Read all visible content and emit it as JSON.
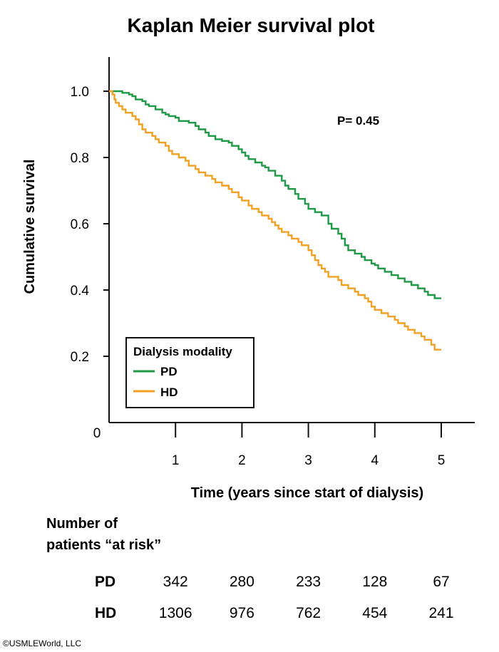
{
  "chart_data": {
    "type": "line",
    "step": true,
    "title": "Kaplan Meier survival plot",
    "xlabel": "Time (years since start of dialysis)",
    "ylabel": "Cumulative survival",
    "x_ticks": [
      "1",
      "2",
      "3",
      "4",
      "5"
    ],
    "y_ticks": [
      "0.2",
      "0.4",
      "0.6",
      "0.8",
      "1.0"
    ],
    "origin_label": "0",
    "xlim": [
      0,
      5.5
    ],
    "ylim": [
      0,
      1.1
    ],
    "grid": false,
    "annotation": "P= 0.45",
    "legend": {
      "title": "Dialysis modality",
      "position": "bottom-left",
      "entries": [
        {
          "label": "PD",
          "color": "#1e9a46"
        },
        {
          "label": "HD",
          "color": "#f4a024"
        }
      ]
    },
    "series": [
      {
        "name": "PD",
        "color": "#1e9a46",
        "points": [
          [
            0,
            1.0
          ],
          [
            0.15,
            1.0
          ],
          [
            0.2,
            0.995
          ],
          [
            0.3,
            0.99
          ],
          [
            0.35,
            0.985
          ],
          [
            0.4,
            0.975
          ],
          [
            0.5,
            0.97
          ],
          [
            0.55,
            0.96
          ],
          [
            0.6,
            0.955
          ],
          [
            0.7,
            0.945
          ],
          [
            0.8,
            0.935
          ],
          [
            0.85,
            0.93
          ],
          [
            0.9,
            0.925
          ],
          [
            1.0,
            0.92
          ],
          [
            1.05,
            0.91
          ],
          [
            1.2,
            0.905
          ],
          [
            1.3,
            0.895
          ],
          [
            1.35,
            0.885
          ],
          [
            1.45,
            0.875
          ],
          [
            1.5,
            0.865
          ],
          [
            1.6,
            0.855
          ],
          [
            1.7,
            0.85
          ],
          [
            1.8,
            0.845
          ],
          [
            1.85,
            0.835
          ],
          [
            1.95,
            0.825
          ],
          [
            2.0,
            0.815
          ],
          [
            2.05,
            0.805
          ],
          [
            2.1,
            0.795
          ],
          [
            2.2,
            0.785
          ],
          [
            2.3,
            0.775
          ],
          [
            2.35,
            0.77
          ],
          [
            2.4,
            0.76
          ],
          [
            2.5,
            0.745
          ],
          [
            2.6,
            0.73
          ],
          [
            2.65,
            0.715
          ],
          [
            2.7,
            0.705
          ],
          [
            2.8,
            0.69
          ],
          [
            2.85,
            0.675
          ],
          [
            2.95,
            0.66
          ],
          [
            3.0,
            0.645
          ],
          [
            3.1,
            0.635
          ],
          [
            3.2,
            0.625
          ],
          [
            3.3,
            0.6
          ],
          [
            3.35,
            0.585
          ],
          [
            3.45,
            0.57
          ],
          [
            3.5,
            0.555
          ],
          [
            3.55,
            0.535
          ],
          [
            3.6,
            0.52
          ],
          [
            3.7,
            0.51
          ],
          [
            3.8,
            0.5
          ],
          [
            3.85,
            0.49
          ],
          [
            3.95,
            0.48
          ],
          [
            4.0,
            0.475
          ],
          [
            4.05,
            0.465
          ],
          [
            4.15,
            0.455
          ],
          [
            4.25,
            0.445
          ],
          [
            4.35,
            0.435
          ],
          [
            4.45,
            0.425
          ],
          [
            4.55,
            0.415
          ],
          [
            4.65,
            0.405
          ],
          [
            4.75,
            0.395
          ],
          [
            4.8,
            0.385
          ],
          [
            4.9,
            0.375
          ],
          [
            5.0,
            0.375
          ]
        ]
      },
      {
        "name": "HD",
        "color": "#f4a024",
        "points": [
          [
            0,
            1.0
          ],
          [
            0.05,
            0.99
          ],
          [
            0.08,
            0.975
          ],
          [
            0.1,
            0.965
          ],
          [
            0.15,
            0.955
          ],
          [
            0.2,
            0.945
          ],
          [
            0.25,
            0.935
          ],
          [
            0.35,
            0.925
          ],
          [
            0.4,
            0.915
          ],
          [
            0.45,
            0.9
          ],
          [
            0.5,
            0.885
          ],
          [
            0.55,
            0.875
          ],
          [
            0.65,
            0.865
          ],
          [
            0.7,
            0.855
          ],
          [
            0.75,
            0.845
          ],
          [
            0.85,
            0.835
          ],
          [
            0.9,
            0.82
          ],
          [
            0.95,
            0.81
          ],
          [
            1.05,
            0.8
          ],
          [
            1.15,
            0.79
          ],
          [
            1.2,
            0.775
          ],
          [
            1.3,
            0.765
          ],
          [
            1.35,
            0.755
          ],
          [
            1.45,
            0.745
          ],
          [
            1.55,
            0.735
          ],
          [
            1.6,
            0.725
          ],
          [
            1.7,
            0.715
          ],
          [
            1.8,
            0.705
          ],
          [
            1.85,
            0.695
          ],
          [
            1.95,
            0.68
          ],
          [
            2.0,
            0.67
          ],
          [
            2.1,
            0.655
          ],
          [
            2.15,
            0.645
          ],
          [
            2.25,
            0.635
          ],
          [
            2.3,
            0.625
          ],
          [
            2.4,
            0.615
          ],
          [
            2.45,
            0.605
          ],
          [
            2.5,
            0.595
          ],
          [
            2.55,
            0.585
          ],
          [
            2.6,
            0.575
          ],
          [
            2.7,
            0.565
          ],
          [
            2.75,
            0.555
          ],
          [
            2.85,
            0.545
          ],
          [
            2.9,
            0.535
          ],
          [
            3.0,
            0.52
          ],
          [
            3.05,
            0.505
          ],
          [
            3.1,
            0.49
          ],
          [
            3.15,
            0.475
          ],
          [
            3.2,
            0.465
          ],
          [
            3.25,
            0.455
          ],
          [
            3.3,
            0.44
          ],
          [
            3.45,
            0.43
          ],
          [
            3.5,
            0.415
          ],
          [
            3.6,
            0.405
          ],
          [
            3.7,
            0.395
          ],
          [
            3.75,
            0.385
          ],
          [
            3.85,
            0.375
          ],
          [
            3.9,
            0.365
          ],
          [
            3.95,
            0.35
          ],
          [
            4.0,
            0.34
          ],
          [
            4.1,
            0.33
          ],
          [
            4.2,
            0.32
          ],
          [
            4.3,
            0.31
          ],
          [
            4.35,
            0.3
          ],
          [
            4.45,
            0.29
          ],
          [
            4.5,
            0.28
          ],
          [
            4.6,
            0.27
          ],
          [
            4.7,
            0.26
          ],
          [
            4.75,
            0.25
          ],
          [
            4.85,
            0.235
          ],
          [
            4.9,
            0.22
          ],
          [
            5.0,
            0.22
          ]
        ]
      }
    ],
    "risk_table": {
      "heading_line1": "Number of",
      "heading_line2": "patients “at risk”",
      "rows": [
        {
          "group": "PD",
          "values": [
            "342",
            "280",
            "233",
            "128",
            "67"
          ]
        },
        {
          "group": "HD",
          "values": [
            "1306",
            "976",
            "762",
            "454",
            "241"
          ]
        }
      ]
    }
  },
  "copyright": "©USMLEWorld, LLC"
}
